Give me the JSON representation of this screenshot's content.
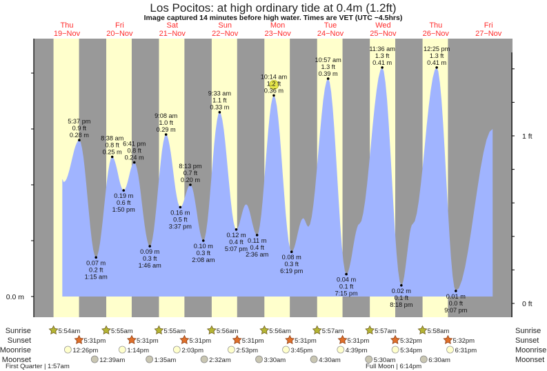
{
  "chart_data": {
    "type": "area",
    "title": "Los Pocitos: at high  ordinary tide at 0.4m (1.2ft)",
    "subtitle": "Image captured 14 minutes before high water. Times are VET (UTC −4.5hrs)",
    "days": [
      {
        "dow": "Thu",
        "date": "19−Nov",
        "day": 19
      },
      {
        "dow": "Fri",
        "date": "20−Nov",
        "day": 20
      },
      {
        "dow": "Sat",
        "date": "21−Nov",
        "day": 21
      },
      {
        "dow": "Sun",
        "date": "22−Nov",
        "day": 22
      },
      {
        "dow": "Mon",
        "date": "23−Nov",
        "day": 23
      },
      {
        "dow": "Tue",
        "date": "24−Nov",
        "day": 24
      },
      {
        "dow": "Wed",
        "date": "25−Nov",
        "day": 25
      },
      {
        "dow": "Thu",
        "date": "26−Nov",
        "day": 26
      },
      {
        "dow": "Fri",
        "date": "27−Nov",
        "day": 27
      }
    ],
    "left_axis": {
      "label": "0.0 m",
      "unit": "m",
      "tick_step": 0.1,
      "range": [
        0,
        0.5
      ]
    },
    "right_axis": {
      "labels": [
        "0 ft",
        "1 ft"
      ],
      "unit": "ft",
      "tick_step": 0.2
    },
    "extremes": [
      {
        "day": 19,
        "time": "5:37 pm",
        "m": "0.28 m",
        "ft": "0.9 ft",
        "value": 0.28,
        "type": "high"
      },
      {
        "day": 20,
        "time": "1:15 am",
        "m": "0.07 m",
        "ft": "0.2 ft",
        "value": 0.07,
        "type": "low"
      },
      {
        "day": 20,
        "time": "8:38 am",
        "m": "0.25 m",
        "ft": "0.8 ft",
        "value": 0.25,
        "type": "high"
      },
      {
        "day": 20,
        "time": "1:50 pm",
        "m": "0.19 m",
        "ft": "0.6 ft",
        "value": 0.19,
        "type": "low"
      },
      {
        "day": 20,
        "time": "6:41 pm",
        "m": "0.24 m",
        "ft": "0.8 ft",
        "value": 0.24,
        "type": "high"
      },
      {
        "day": 21,
        "time": "1:46 am",
        "m": "0.09 m",
        "ft": "0.3 ft",
        "value": 0.09,
        "type": "low"
      },
      {
        "day": 21,
        "time": "9:08 am",
        "m": "0.29 m",
        "ft": "1.0 ft",
        "value": 0.29,
        "type": "high"
      },
      {
        "day": 21,
        "time": "3:37 pm",
        "m": "0.16 m",
        "ft": "0.5 ft",
        "value": 0.16,
        "type": "low"
      },
      {
        "day": 21,
        "time": "8:13 pm",
        "m": "0.20 m",
        "ft": "0.7 ft",
        "value": 0.2,
        "type": "high"
      },
      {
        "day": 22,
        "time": "2:08 am",
        "m": "0.10 m",
        "ft": "0.3 ft",
        "value": 0.1,
        "type": "low"
      },
      {
        "day": 22,
        "time": "9:33 am",
        "m": "0.33 m",
        "ft": "1.1 ft",
        "value": 0.33,
        "type": "high"
      },
      {
        "day": 22,
        "time": "5:07 pm",
        "m": "0.12 m",
        "ft": "0.4 ft",
        "value": 0.12,
        "type": "low"
      },
      {
        "day": 23,
        "time": "2:36 am",
        "m": "0.11 m",
        "ft": "0.4 ft",
        "value": 0.11,
        "type": "low"
      },
      {
        "day": 23,
        "time": "10:14 am",
        "m": "0.36 m",
        "ft": "1.2 ft",
        "value": 0.36,
        "type": "high"
      },
      {
        "day": 23,
        "time": "6:19 pm",
        "m": "0.08 m",
        "ft": "0.3 ft",
        "value": 0.08,
        "type": "low"
      },
      {
        "day": 24,
        "time": "10:57 am",
        "m": "0.39 m",
        "ft": "1.3 ft",
        "value": 0.39,
        "type": "high"
      },
      {
        "day": 24,
        "time": "7:15 pm",
        "m": "0.04 m",
        "ft": "0.1 ft",
        "value": 0.04,
        "type": "low"
      },
      {
        "day": 25,
        "time": "11:36 am",
        "m": "0.41 m",
        "ft": "1.3 ft",
        "value": 0.41,
        "type": "high"
      },
      {
        "day": 25,
        "time": "8:18 pm",
        "m": "0.02 m",
        "ft": "0.1 ft",
        "value": 0.02,
        "type": "low"
      },
      {
        "day": 26,
        "time": "12:25 pm",
        "m": "0.41 m",
        "ft": "1.3 ft",
        "value": 0.41,
        "type": "high"
      },
      {
        "day": 26,
        "time": "9:07 pm",
        "m": "0.01 m",
        "ft": "0.0 ft",
        "value": 0.01,
        "type": "low"
      }
    ],
    "curve_extra_points": [
      {
        "day": 19,
        "hour": 9.9,
        "value": 0.21
      },
      {
        "day": 19,
        "hour": 10.6,
        "value": 0.205
      },
      {
        "day": 22,
        "hour": 21.6,
        "value": 0.165
      },
      {
        "day": 23,
        "hour": 23.6,
        "value": 0.14
      },
      {
        "day": 24,
        "hour": 2.0,
        "value": 0.125
      },
      {
        "day": 25,
        "hour": 1.2,
        "value": 0.13
      },
      {
        "day": 26,
        "hour": 1.5,
        "value": 0.13
      },
      {
        "day": 27,
        "hour": 13.9,
        "value": 0.3
      }
    ],
    "capture_marker": {
      "day": 23,
      "hour": 10.0,
      "value": 0.395
    },
    "colors": {
      "water": "#a0b4ff",
      "night": "#999999",
      "day": "#ffffcc",
      "day_label": "#ff2a2a"
    }
  },
  "almanac": {
    "row_labels": {
      "sunrise": "Sunrise",
      "sunset": "Sunset",
      "moonrise": "Moonrise",
      "moonset": "Moonset"
    },
    "sunrise": [
      {
        "day": 19,
        "time": "5:54am"
      },
      {
        "day": 20,
        "time": "5:55am"
      },
      {
        "day": 21,
        "time": "5:55am"
      },
      {
        "day": 22,
        "time": "5:56am"
      },
      {
        "day": 23,
        "time": "5:56am"
      },
      {
        "day": 24,
        "time": "5:57am"
      },
      {
        "day": 25,
        "time": "5:57am"
      },
      {
        "day": 26,
        "time": "5:58am"
      }
    ],
    "sunset": [
      {
        "day": 19,
        "time": "5:31pm"
      },
      {
        "day": 20,
        "time": "5:31pm"
      },
      {
        "day": 21,
        "time": "5:31pm"
      },
      {
        "day": 22,
        "time": "5:31pm"
      },
      {
        "day": 23,
        "time": "5:31pm"
      },
      {
        "day": 24,
        "time": "5:31pm"
      },
      {
        "day": 25,
        "time": "5:32pm"
      },
      {
        "day": 26,
        "time": "5:32pm"
      }
    ],
    "moonrise": [
      {
        "day": 19,
        "time": "12:26pm"
      },
      {
        "day": 20,
        "time": "1:14pm"
      },
      {
        "day": 21,
        "time": "2:03pm"
      },
      {
        "day": 22,
        "time": "2:53pm"
      },
      {
        "day": 23,
        "time": "3:45pm"
      },
      {
        "day": 24,
        "time": "4:39pm"
      },
      {
        "day": 25,
        "time": "5:34pm"
      },
      {
        "day": 26,
        "time": "6:31pm"
      }
    ],
    "moonset": [
      {
        "day": 20,
        "time": "12:39am"
      },
      {
        "day": 21,
        "time": "1:35am"
      },
      {
        "day": 22,
        "time": "2:32am"
      },
      {
        "day": 23,
        "time": "3:30am"
      },
      {
        "day": 24,
        "time": "4:30am"
      },
      {
        "day": 25,
        "time": "5:30am"
      },
      {
        "day": 26,
        "time": "6:30am"
      }
    ],
    "phases": [
      {
        "text": "First Quarter | 1:57am",
        "day": 20,
        "hour": 1.95
      },
      {
        "text": "Full Moon | 6:14pm",
        "day": 30,
        "hour": 18.2
      }
    ]
  }
}
